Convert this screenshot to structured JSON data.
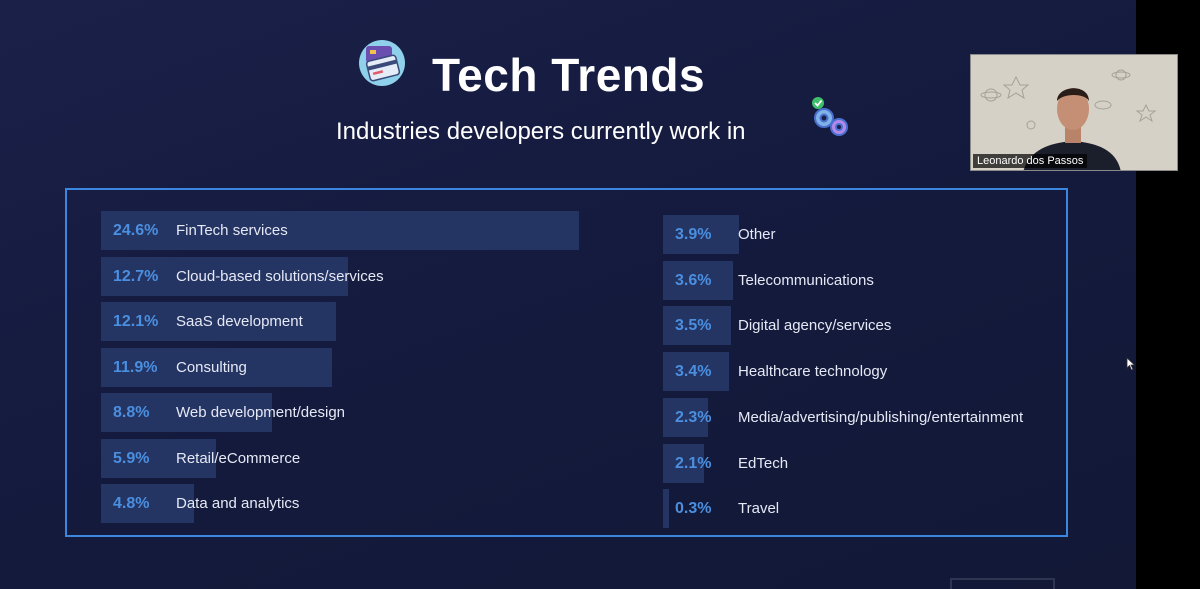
{
  "slide": {
    "title": "Tech Trends",
    "subtitle": "Industries developers currently work in",
    "icons": {
      "title_icon": "credit-card-icon",
      "subtitle_icon": "gears-icon"
    }
  },
  "chart_data": {
    "type": "bar",
    "orientation": "horizontal",
    "title": "",
    "xlabel": "",
    "ylabel": "",
    "unit": "%",
    "xlim": [
      0,
      24.6
    ],
    "grid": false,
    "legend": "none",
    "bar_color": "#243463",
    "value_color": "#4a8fe0",
    "columns": [
      {
        "categories": [
          "FinTech services",
          "Cloud-based solutions/services",
          "SaaS development",
          "Consulting",
          "Web development/design",
          "Retail/eCommerce",
          "Data and analytics"
        ],
        "values": [
          24.6,
          12.7,
          12.1,
          11.9,
          8.8,
          5.9,
          4.8
        ],
        "value_labels": [
          "24.6%",
          "12.7%",
          "12.1%",
          "11.9%",
          "8.8%",
          "5.9%",
          "4.8%"
        ]
      },
      {
        "categories": [
          "Other",
          "Telecommunications",
          "Digital agency/services",
          "Healthcare technology",
          "Media/advertising/publishing/entertainment",
          "EdTech",
          "Travel"
        ],
        "values": [
          3.9,
          3.6,
          3.5,
          3.4,
          2.3,
          2.1,
          0.3
        ],
        "value_labels": [
          "3.9%",
          "3.6%",
          "3.5%",
          "3.4%",
          "2.3%",
          "2.1%",
          "0.3%"
        ]
      }
    ]
  },
  "webcam": {
    "participant_name": "Leonardo dos Passos"
  },
  "colors": {
    "slide_bg": "#161c40",
    "frame": "#3b87e0",
    "bar": "#243463",
    "value": "#4a8fe0",
    "text": "#ffffff"
  }
}
